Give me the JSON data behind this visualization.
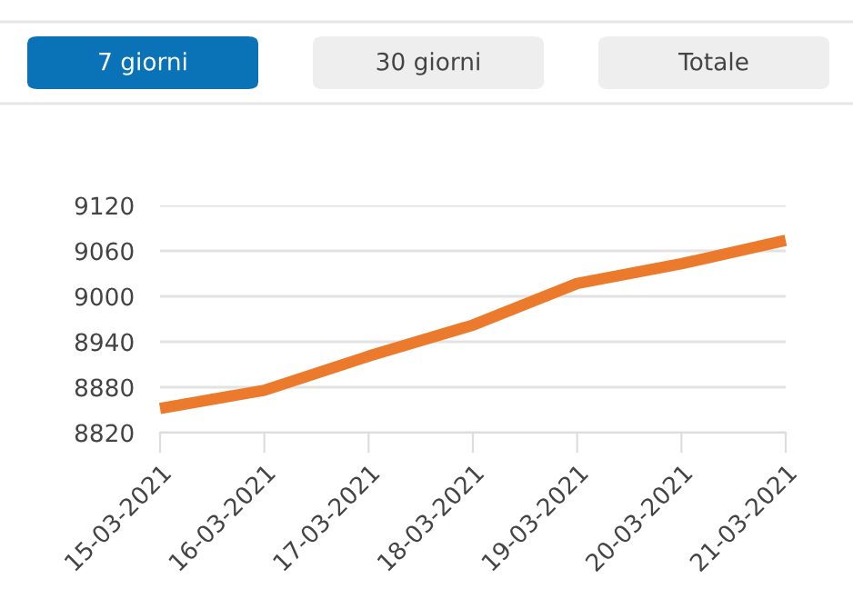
{
  "chart_data": {
    "type": "line",
    "categories": [
      "15-03-2021",
      "16-03-2021",
      "17-03-2021",
      "18-03-2021",
      "19-03-2021",
      "20-03-2021",
      "21-03-2021"
    ],
    "series": [
      {
        "color": "#ec7a2c",
        "values": [
          8852,
          8876,
          8921,
          8962,
          9017,
          9043,
          9074
        ]
      }
    ],
    "ylim": [
      8820,
      9120
    ],
    "yticks": [
      8820,
      8880,
      8940,
      9000,
      9060,
      9120
    ],
    "grid": "y",
    "marker": "none",
    "line_style": "solid",
    "annotations": [
      "7 giorni",
      "30 giorni",
      "Totale"
    ]
  }
}
